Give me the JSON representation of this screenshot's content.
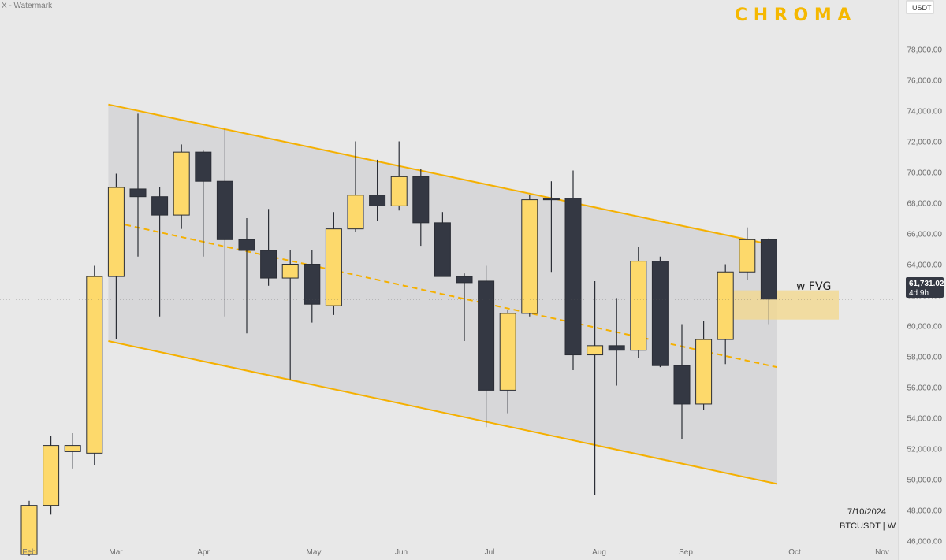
{
  "watermark_label": "X - Watermark",
  "brand": "C H R O M A",
  "currency_label": "USDT",
  "fvg_label": "w FVG",
  "date_label": "7/10/2024",
  "symbol_label": "BTCUSDT | W",
  "price_label": {
    "value": "61,731.02",
    "timer": "4d 9h"
  },
  "colors": {
    "bull": "#fdd96b",
    "bear": "#343843",
    "channel": "#f5b000",
    "channel_fill": "#d3d3d6",
    "fvg": "#f4d88a",
    "background": "#e8e8e8"
  },
  "chart_data": {
    "type": "candlestick",
    "title": "",
    "ylim": [
      45000,
      79000
    ],
    "y_ticks": [
      "46,000.00",
      "48,000.00",
      "50,000.00",
      "52,000.00",
      "54,000.00",
      "56,000.00",
      "58,000.00",
      "60,000.00",
      "62,000.00",
      "64,000.00",
      "66,000.00",
      "68,000.00",
      "70,000.00",
      "72,000.00",
      "74,000.00",
      "76,000.00",
      "78,000.00"
    ],
    "x_ticks": [
      "Feb",
      "Mar",
      "Apr",
      "May",
      "Jun",
      "Jul",
      "Aug",
      "Sep",
      "Oct",
      "Nov"
    ],
    "current_price": 61731.02,
    "candles": [
      {
        "o": 45100,
        "h": 48600,
        "l": 45000,
        "c": 48300
      },
      {
        "o": 48300,
        "h": 52800,
        "l": 47700,
        "c": 52200
      },
      {
        "o": 51800,
        "h": 53000,
        "l": 50700,
        "c": 52200
      },
      {
        "o": 51700,
        "h": 63900,
        "l": 50900,
        "c": 63200
      },
      {
        "o": 63200,
        "h": 69900,
        "l": 59100,
        "c": 69000
      },
      {
        "o": 68900,
        "h": 73800,
        "l": 64500,
        "c": 68400
      },
      {
        "o": 68400,
        "h": 69000,
        "l": 60600,
        "c": 67200
      },
      {
        "o": 67200,
        "h": 71800,
        "l": 66300,
        "c": 71300
      },
      {
        "o": 71300,
        "h": 71400,
        "l": 64500,
        "c": 69400
      },
      {
        "o": 69400,
        "h": 72800,
        "l": 60600,
        "c": 65600
      },
      {
        "o": 65600,
        "h": 67000,
        "l": 59500,
        "c": 64900
      },
      {
        "o": 64900,
        "h": 67600,
        "l": 62600,
        "c": 63100
      },
      {
        "o": 63100,
        "h": 64900,
        "l": 56500,
        "c": 64000
      },
      {
        "o": 64000,
        "h": 64900,
        "l": 60200,
        "c": 61400
      },
      {
        "o": 61300,
        "h": 67400,
        "l": 60700,
        "c": 66300
      },
      {
        "o": 66300,
        "h": 72000,
        "l": 66100,
        "c": 68500
      },
      {
        "o": 68500,
        "h": 70800,
        "l": 66800,
        "c": 67800
      },
      {
        "o": 67800,
        "h": 72000,
        "l": 67500,
        "c": 69700
      },
      {
        "o": 69700,
        "h": 70200,
        "l": 65200,
        "c": 66700
      },
      {
        "o": 66700,
        "h": 67400,
        "l": 63300,
        "c": 63200
      },
      {
        "o": 63200,
        "h": 63400,
        "l": 59000,
        "c": 62800
      },
      {
        "o": 62900,
        "h": 63900,
        "l": 53400,
        "c": 55800
      },
      {
        "o": 55800,
        "h": 61000,
        "l": 54300,
        "c": 60800
      },
      {
        "o": 60800,
        "h": 68500,
        "l": 60600,
        "c": 68200
      },
      {
        "o": 68300,
        "h": 69400,
        "l": 63500,
        "c": 68200
      },
      {
        "o": 68300,
        "h": 70100,
        "l": 57100,
        "c": 58100
      },
      {
        "o": 58100,
        "h": 62900,
        "l": 49000,
        "c": 58700
      },
      {
        "o": 58700,
        "h": 61800,
        "l": 56100,
        "c": 58400
      },
      {
        "o": 58400,
        "h": 65100,
        "l": 57900,
        "c": 64200
      },
      {
        "o": 64200,
        "h": 64500,
        "l": 57300,
        "c": 57400
      },
      {
        "o": 57400,
        "h": 60100,
        "l": 52600,
        "c": 54900
      },
      {
        "o": 54900,
        "h": 60300,
        "l": 54500,
        "c": 59100
      },
      {
        "o": 59100,
        "h": 64000,
        "l": 57500,
        "c": 63500
      },
      {
        "o": 63500,
        "h": 66400,
        "l": 63000,
        "c": 65600
      },
      {
        "o": 65600,
        "h": 65700,
        "l": 60100,
        "c": 61731.02
      }
    ],
    "channel": {
      "upper": [
        [
          4,
          74400
        ],
        [
          34,
          65200
        ]
      ],
      "lower": [
        [
          4,
          59000
        ],
        [
          34,
          49700
        ]
      ],
      "midline": [
        [
          4,
          66700
        ],
        [
          34,
          57300
        ]
      ]
    },
    "fvg_zone": {
      "y_low": 60400,
      "y_high": 62300,
      "from_candle": 33
    }
  }
}
